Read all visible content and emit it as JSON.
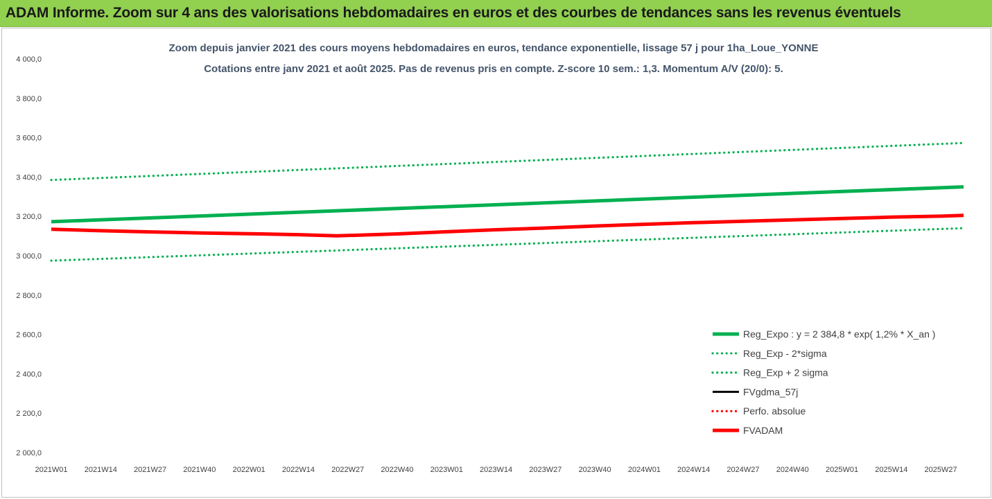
{
  "banner": {
    "title": "ADAM Informe. Zoom sur 4 ans des valorisations hebdomadaires en euros et des courbes de tendances sans les revenus éventuels"
  },
  "chart_data": {
    "type": "line",
    "title": "Zoom depuis janvier 2021 des cours moyens hebdomadaires en euros, tendance exponentielle, lissage 57 j pour 1ha_Loue_YONNE",
    "subtitle": "Cotations entre janv 2021 et août 2025.  Pas de revenus pris en compte. Z-score 10 sem.: 1,3. Momentum A/V (20/0): 5.",
    "xlabel": "",
    "ylabel": "",
    "ylim": [
      2000,
      4000
    ],
    "y_ticks": [
      "4 000,0",
      "3 800,0",
      "3 600,0",
      "3 400,0",
      "3 200,0",
      "3 000,0",
      "2 800,0",
      "2 600,0",
      "2 400,0",
      "2 200,0",
      "2 000,0"
    ],
    "y_tick_values": [
      4000,
      3800,
      3600,
      3400,
      3200,
      3000,
      2800,
      2600,
      2400,
      2200,
      2000
    ],
    "x_ticks": [
      "2021W01",
      "2021W14",
      "2021W27",
      "2021W40",
      "2022W01",
      "2022W14",
      "2022W27",
      "2022W40",
      "2023W01",
      "2023W14",
      "2023W27",
      "2023W40",
      "2024W01",
      "2024W14",
      "2024W27",
      "2024W40",
      "2025W01",
      "2025W14",
      "2025W27"
    ],
    "x_end": "2025W33",
    "grid": false,
    "legend_position": "bottom-right",
    "series": [
      {
        "name": "Reg_Expo : y = 2 384,8 * exp( 1,2% *  X_an )",
        "color": "#00b050",
        "style": "solid-thick",
        "x": [
          "2021W01",
          "2025W33"
        ],
        "values": [
          3173,
          3350
        ]
      },
      {
        "name": "Reg_Exp - 2*sigma",
        "color": "#00b050",
        "style": "dotted",
        "x": [
          "2021W01",
          "2025W33"
        ],
        "values": [
          2975,
          3140
        ]
      },
      {
        "name": "Reg_Exp + 2 sigma",
        "color": "#00b050",
        "style": "dotted",
        "x": [
          "2021W01",
          "2025W33"
        ],
        "values": [
          3385,
          3573
        ]
      },
      {
        "name": "FVgdma_57j",
        "color": "#000000",
        "style": "solid",
        "x": [],
        "values": []
      },
      {
        "name": "Perfo. absolue",
        "color": "#ff0000",
        "style": "dotted",
        "x": [],
        "values": []
      },
      {
        "name": "FVADAM",
        "color": "#ff0000",
        "style": "solid-thick",
        "x": [
          "2021W01",
          "2021W14",
          "2021W27",
          "2021W40",
          "2022W01",
          "2022W14",
          "2022W24",
          "2022W40",
          "2023W01",
          "2023W14",
          "2023W27",
          "2023W40",
          "2024W01",
          "2024W14",
          "2024W27",
          "2024W40",
          "2025W01",
          "2025W14",
          "2025W27",
          "2025W33"
        ],
        "values": [
          3135,
          3127,
          3121,
          3116,
          3112,
          3107,
          3101,
          3111,
          3122,
          3132,
          3141,
          3151,
          3160,
          3168,
          3175,
          3182,
          3189,
          3196,
          3201,
          3205
        ]
      }
    ]
  }
}
